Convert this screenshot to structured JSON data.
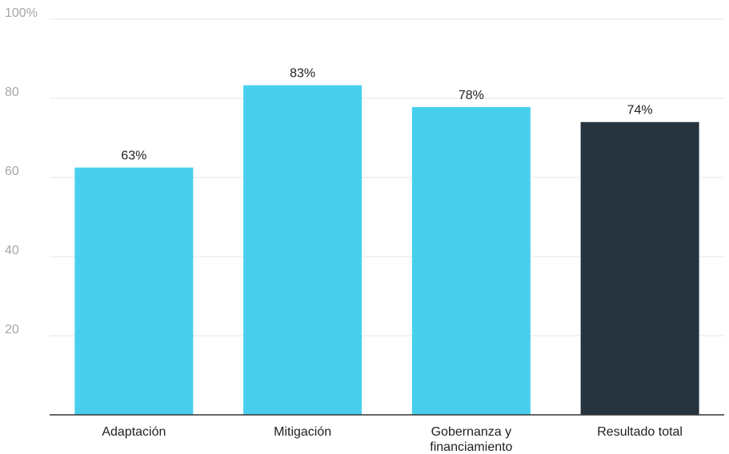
{
  "chart_data": {
    "type": "bar",
    "categories": [
      [
        "Adaptación"
      ],
      [
        "Mitigación"
      ],
      [
        "Gobernanza y",
        "financiamiento"
      ],
      [
        "Resultado total"
      ]
    ],
    "values": [
      62.5,
      83.3,
      77.8,
      74.0
    ],
    "data_labels": [
      "63%",
      "83%",
      "78%",
      "74%"
    ],
    "bar_colors": [
      "#48cfed",
      "#48cfed",
      "#48cfed",
      "#25343e"
    ],
    "ylim": [
      0,
      100
    ],
    "y_ticks": [
      {
        "value": 20,
        "label": "20"
      },
      {
        "value": 40,
        "label": "40"
      },
      {
        "value": 60,
        "label": "60"
      },
      {
        "value": 80,
        "label": "80"
      },
      {
        "value": 100,
        "label": "100%"
      }
    ],
    "grid": true,
    "legend": false
  }
}
